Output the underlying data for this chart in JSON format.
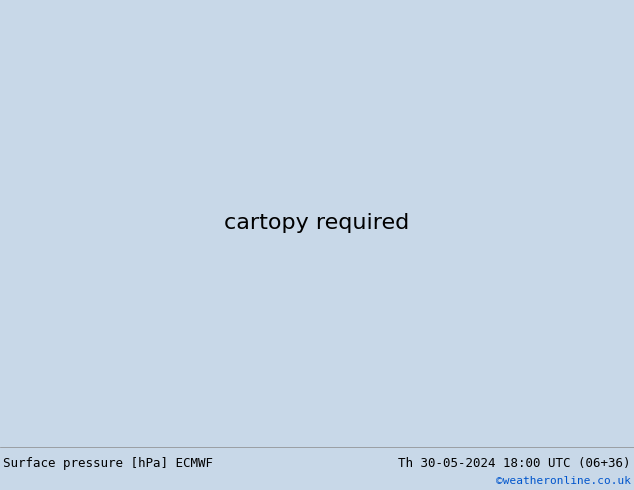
{
  "title_left": "Surface pressure [hPa] ECMWF",
  "title_right": "Th 30-05-2024 18:00 UTC (06+36)",
  "credit": "©weatheronline.co.uk",
  "sea_color": "#c8c8c8",
  "land_color": "#b8dca0",
  "mountain_color": "#d0d8c0",
  "contour_blue_color": "#0000cc",
  "contour_red_color": "#cc0000",
  "contour_black_color": "#000000",
  "figsize": [
    6.34,
    4.9
  ],
  "dpi": 100,
  "bottom_bar_color": "#c8d8e8",
  "font_size_label": 9,
  "font_size_credit": 8,
  "lon_min": -2.0,
  "lon_max": 32.0,
  "lat_min": 54.0,
  "lat_max": 72.0
}
